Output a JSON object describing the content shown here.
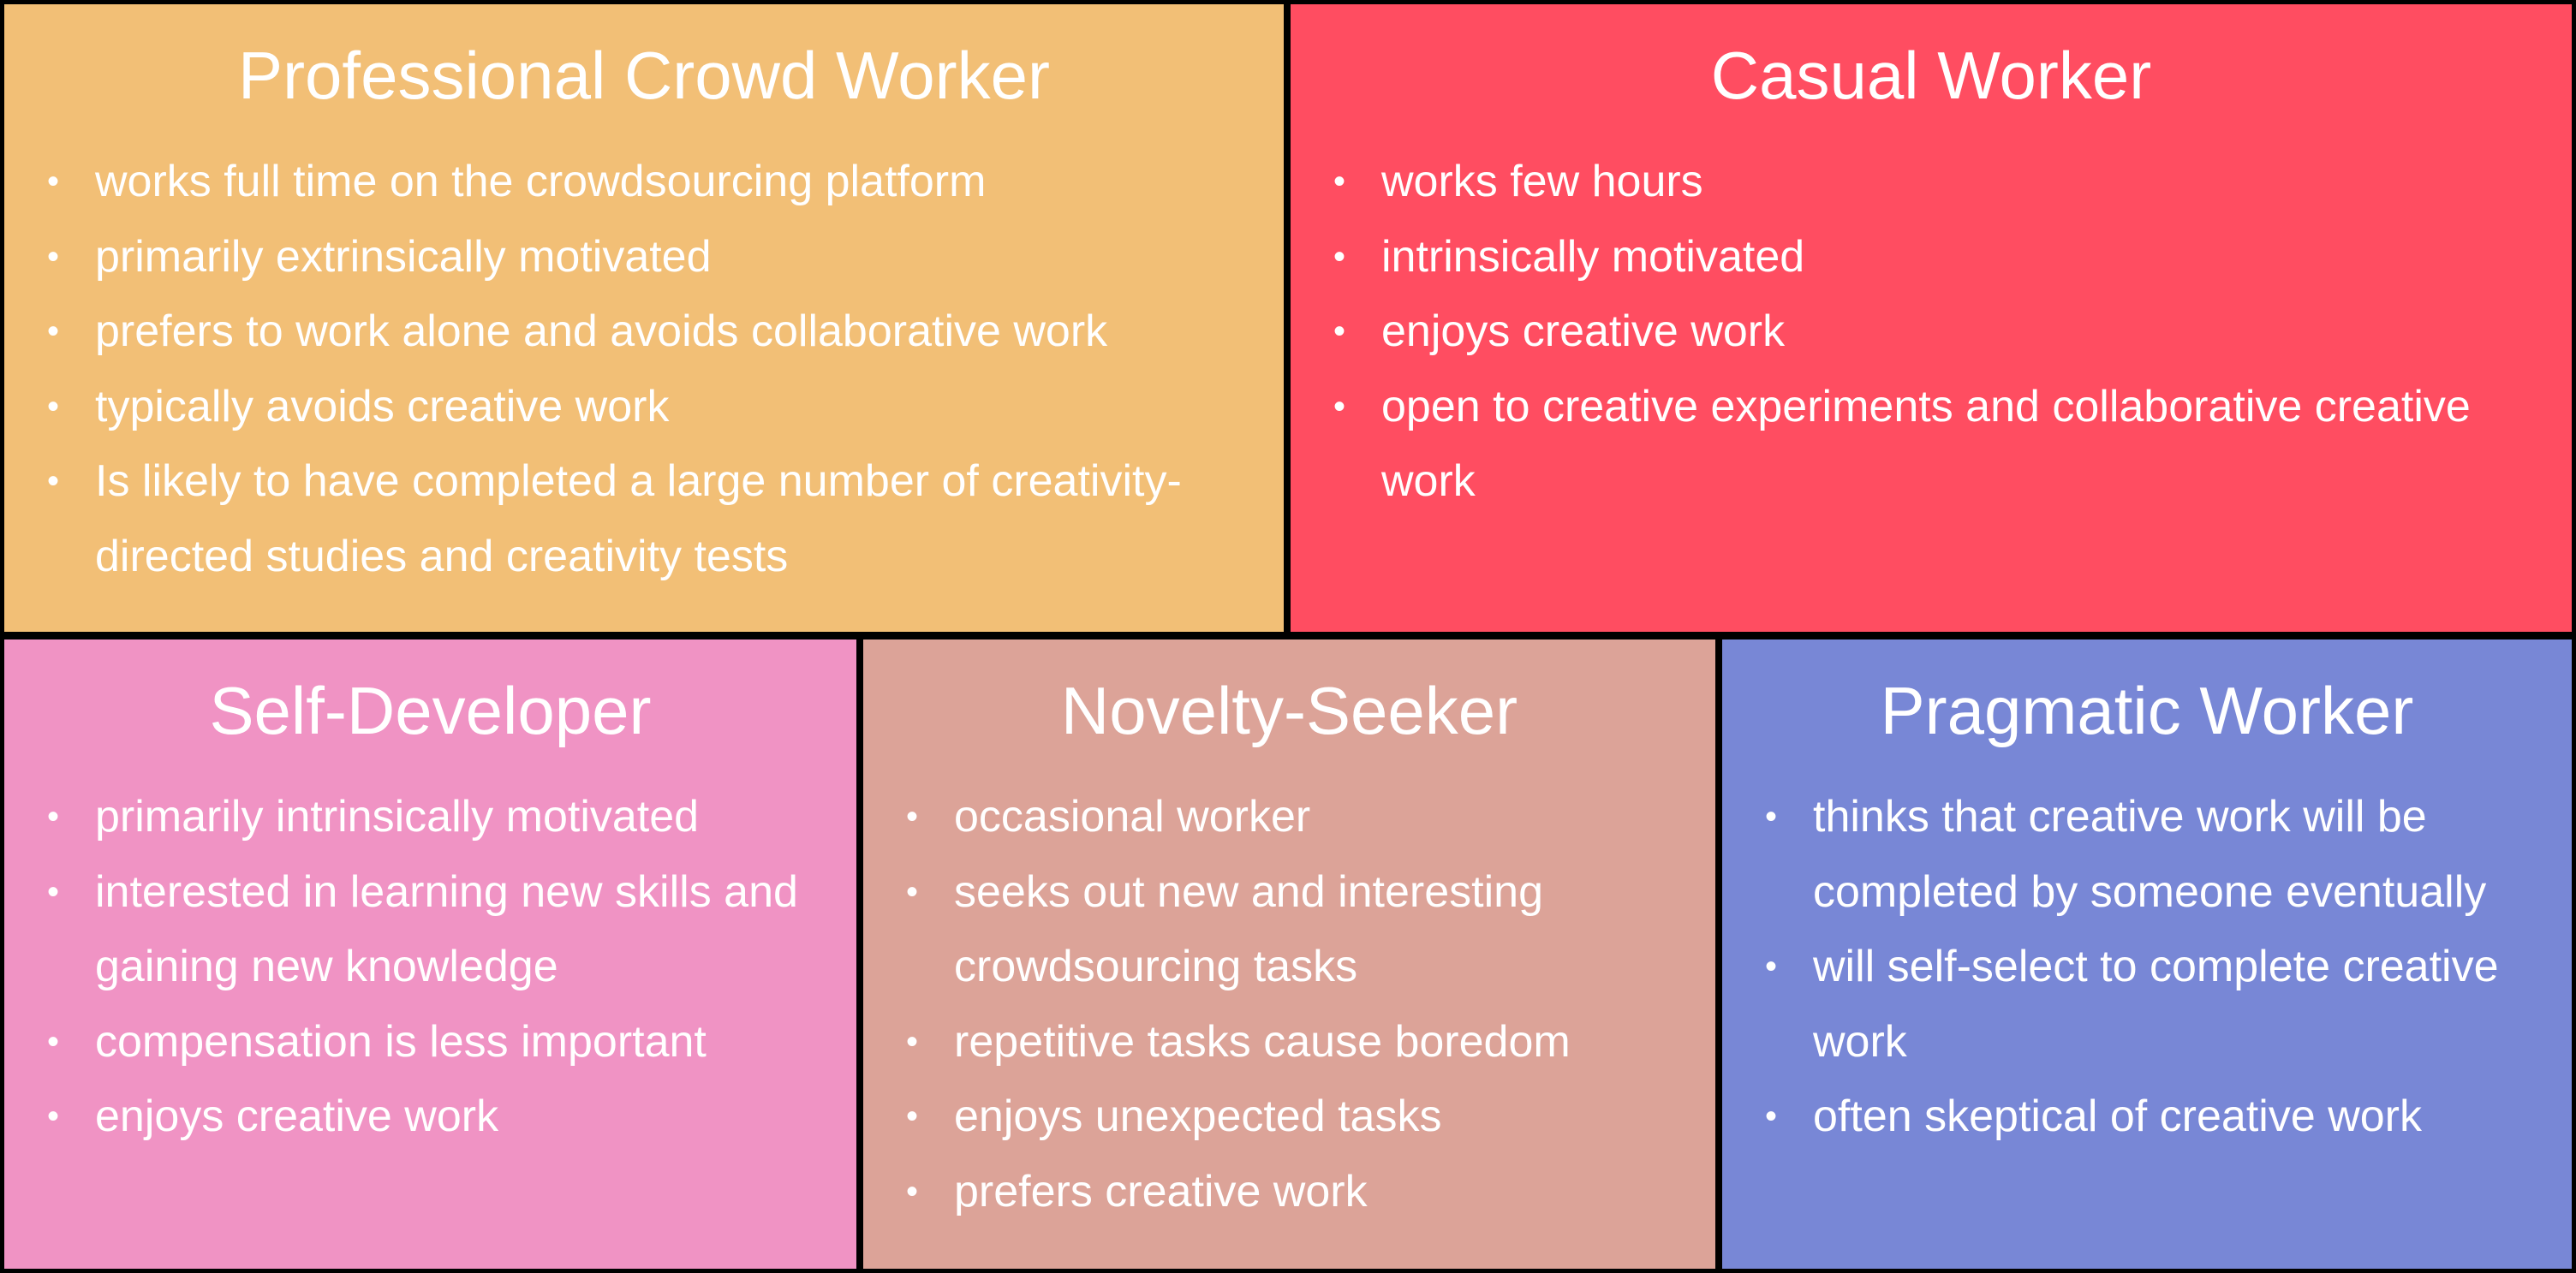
{
  "panels": [
    {
      "title": "Professional Crowd Worker",
      "color": "#F2BF76",
      "items": [
        "works full time on the crowdsourcing platform",
        "primarily extrinsically motivated",
        "prefers to work alone and avoids collaborative work",
        "typically avoids creative work",
        "Is likely to have completed a large number of creativity-directed studies and creativity tests"
      ]
    },
    {
      "title": "Casual Worker",
      "color": "#FF4D61",
      "items": [
        "works few hours",
        "intrinsically motivated",
        "enjoys creative work",
        "open to creative experiments and collaborative creative work"
      ]
    },
    {
      "title": "Self-Developer",
      "color": "#F093C4",
      "items": [
        "primarily intrinsically motivated",
        "interested in learning new skills and gaining new knowledge",
        "compensation is less important",
        "enjoys creative work"
      ]
    },
    {
      "title": "Novelty-Seeker",
      "color": "#DCA398",
      "items": [
        "occasional worker",
        "seeks out new and interesting crowdsourcing tasks",
        "repetitive tasks cause boredom",
        "enjoys unexpected tasks",
        "prefers creative work"
      ]
    },
    {
      "title": "Pragmatic Worker",
      "color": "#7887D6",
      "items": [
        "thinks that creative work will be completed by someone eventually",
        "will self-select to complete creative work",
        "often skeptical of creative work"
      ]
    }
  ]
}
